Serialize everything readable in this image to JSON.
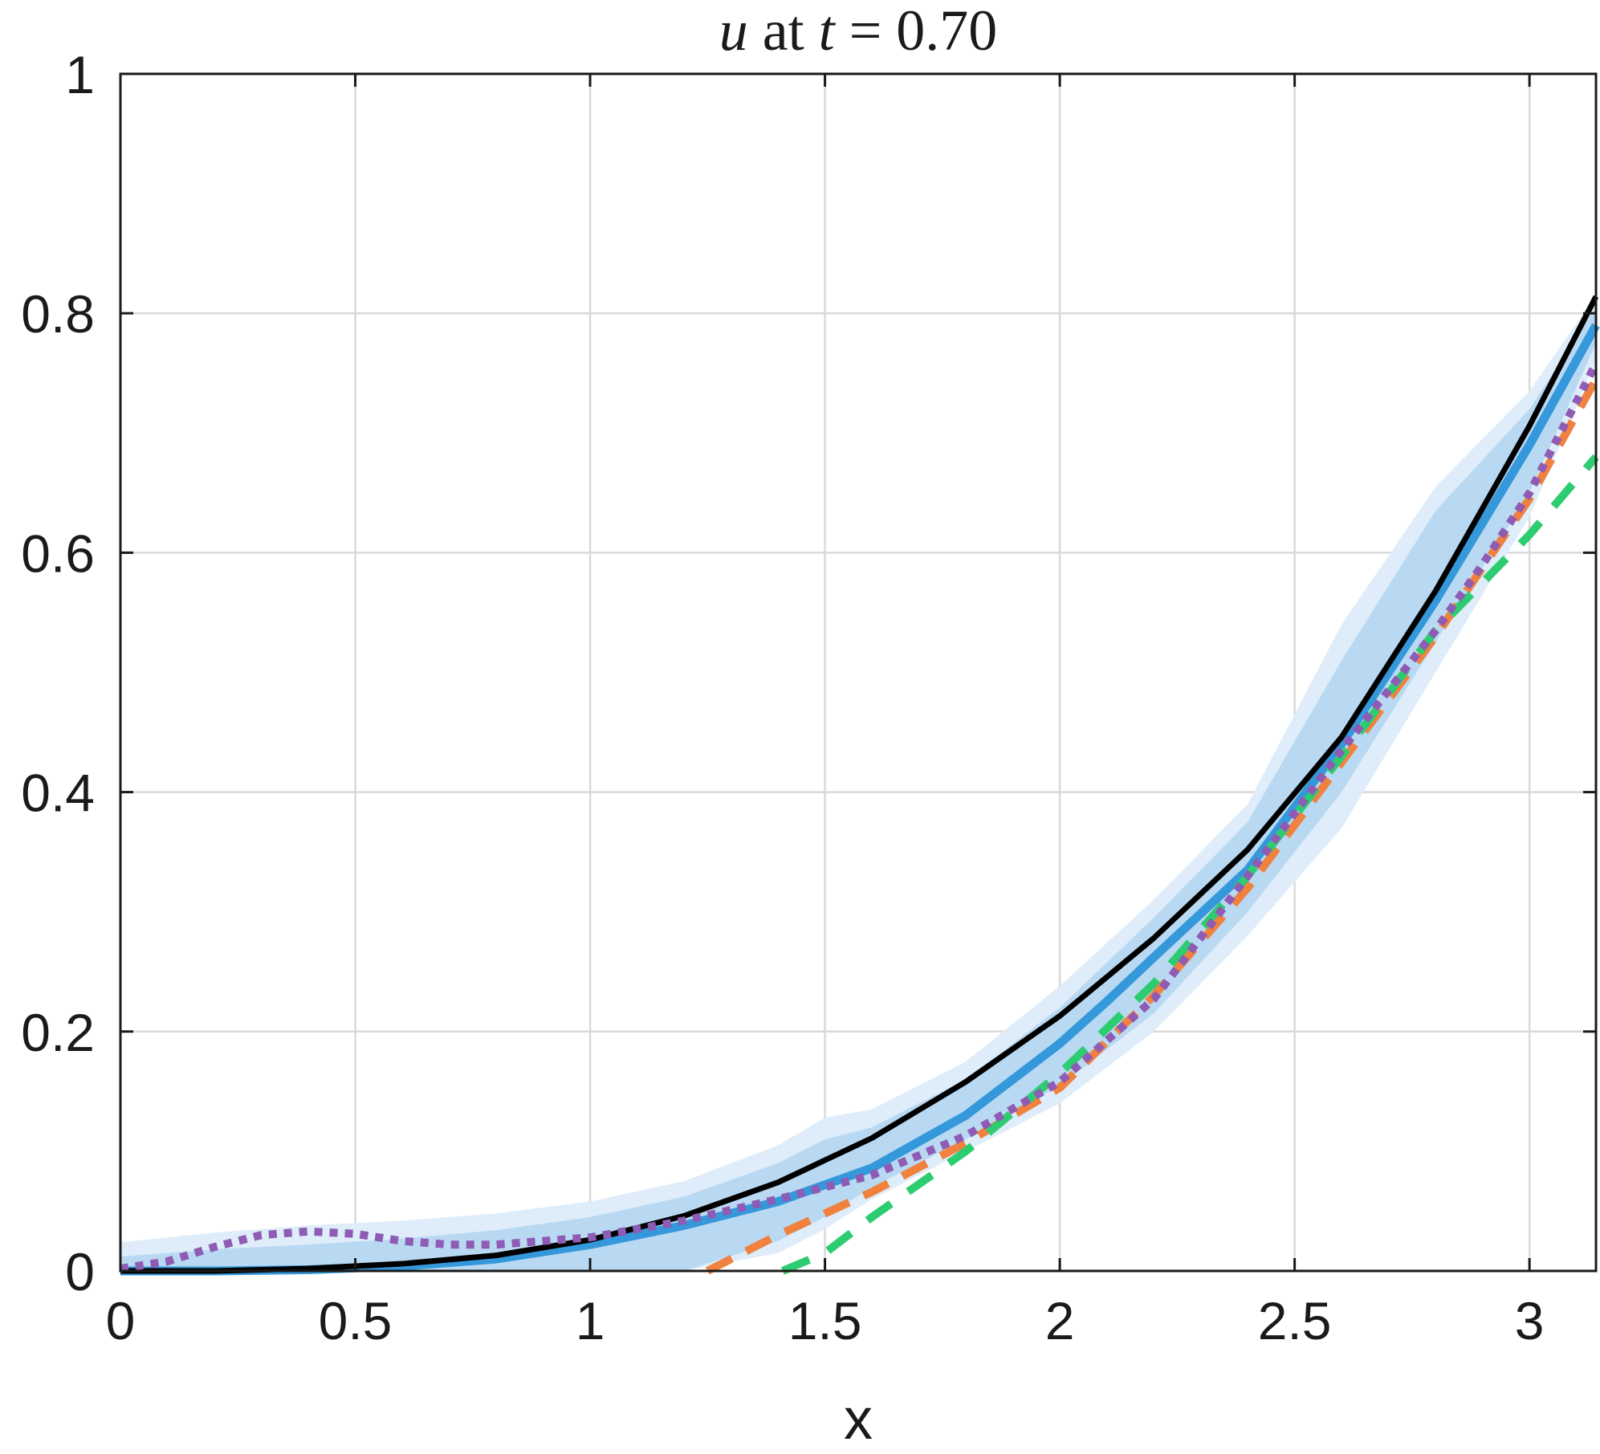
{
  "chart_data": {
    "type": "line",
    "title": "u at t = 0.70",
    "title_parts": {
      "var": "u",
      "mid": " at ",
      "tvar": "t",
      "tail": " = 0.70"
    },
    "xlabel": "x",
    "ylabel": "",
    "xlim": [
      0,
      3.1416
    ],
    "ylim": [
      0,
      1
    ],
    "xticks": [
      0,
      0.5,
      1,
      1.5,
      2,
      2.5,
      3
    ],
    "xtick_labels": [
      "0",
      "0.5",
      "1",
      "1.5",
      "2",
      "2.5",
      "3"
    ],
    "yticks": [
      0,
      0.2,
      0.4,
      0.6,
      0.8,
      1
    ],
    "ytick_labels": [
      "0",
      "0.2",
      "0.4",
      "0.6",
      "0.8",
      "1"
    ],
    "grid": true,
    "colors": {
      "black": "#000000",
      "blue": "#3498db",
      "band_outer": "#deedf9",
      "band_inner": "#b9d9f2",
      "orange": "#f0813e",
      "green": "#2ecc71",
      "purple": "#8e5bb5"
    },
    "bands": [
      {
        "style": "outer",
        "x": [
          0,
          0.2,
          0.4,
          0.6,
          0.8,
          1.0,
          1.2,
          1.4,
          1.5,
          1.6,
          1.8,
          2.0,
          2.2,
          2.4,
          2.6,
          2.8,
          3.0,
          3.1416
        ],
        "upper": [
          0.024,
          0.032,
          0.038,
          0.042,
          0.048,
          0.058,
          0.075,
          0.105,
          0.128,
          0.135,
          0.175,
          0.238,
          0.31,
          0.39,
          0.54,
          0.655,
          0.735,
          0.815
        ],
        "lower": [
          0.0,
          0.0,
          0.0,
          0.0,
          0.0,
          0.0,
          0.0,
          0.015,
          0.035,
          0.06,
          0.1,
          0.14,
          0.2,
          0.28,
          0.37,
          0.5,
          0.63,
          0.76
        ]
      },
      {
        "style": "inner",
        "x": [
          0,
          0.2,
          0.4,
          0.6,
          0.8,
          1.0,
          1.2,
          1.4,
          1.5,
          1.6,
          1.8,
          2.0,
          2.2,
          2.4,
          2.6,
          2.8,
          3.0,
          3.1416
        ],
        "upper": [
          0.012,
          0.018,
          0.022,
          0.027,
          0.034,
          0.045,
          0.062,
          0.09,
          0.11,
          0.12,
          0.16,
          0.22,
          0.295,
          0.375,
          0.51,
          0.635,
          0.72,
          0.805
        ],
        "lower": [
          0.0,
          0.0,
          0.0,
          0.0,
          0.0,
          0.0,
          0.0,
          0.025,
          0.045,
          0.07,
          0.11,
          0.155,
          0.215,
          0.3,
          0.4,
          0.525,
          0.65,
          0.775
        ]
      }
    ],
    "series": [
      {
        "style": "blue-solid",
        "x": [
          0,
          0.2,
          0.4,
          0.6,
          0.8,
          1.0,
          1.2,
          1.4,
          1.6,
          1.8,
          2.0,
          2.1,
          2.2,
          2.4,
          2.6,
          2.8,
          3.0,
          3.1416
        ],
        "y": [
          0.0,
          0.0,
          0.001,
          0.004,
          0.01,
          0.022,
          0.038,
          0.058,
          0.086,
          0.13,
          0.19,
          0.225,
          0.262,
          0.335,
          0.44,
          0.56,
          0.69,
          0.79
        ]
      },
      {
        "style": "black-solid",
        "x": [
          0,
          0.2,
          0.4,
          0.6,
          0.8,
          1.0,
          1.2,
          1.4,
          1.6,
          1.8,
          2.0,
          2.2,
          2.4,
          2.6,
          2.8,
          3.0,
          3.1416
        ],
        "y": [
          0.0,
          0.0,
          0.002,
          0.006,
          0.013,
          0.026,
          0.046,
          0.074,
          0.111,
          0.158,
          0.213,
          0.278,
          0.352,
          0.446,
          0.568,
          0.706,
          0.814
        ]
      },
      {
        "style": "orange-dashed",
        "x": [
          1.25,
          1.4,
          1.6,
          1.8,
          2.0,
          2.2,
          2.4,
          2.6,
          2.8,
          3.0,
          3.1416
        ],
        "y": [
          0.0,
          0.03,
          0.066,
          0.107,
          0.153,
          0.23,
          0.32,
          0.425,
          0.53,
          0.645,
          0.745
        ]
      },
      {
        "style": "green-dashed",
        "x": [
          1.41,
          1.5,
          1.6,
          1.8,
          2.0,
          2.2,
          2.4,
          2.6,
          2.8,
          3.0,
          3.1416
        ],
        "y": [
          0.0,
          0.015,
          0.045,
          0.1,
          0.165,
          0.24,
          0.33,
          0.43,
          0.535,
          0.615,
          0.68
        ]
      },
      {
        "style": "purple-dotted",
        "x": [
          0,
          0.1,
          0.2,
          0.3,
          0.4,
          0.5,
          0.6,
          0.7,
          0.8,
          1.0,
          1.2,
          1.4,
          1.6,
          1.8,
          2.0,
          2.2,
          2.4,
          2.6,
          2.8,
          2.9,
          3.0,
          3.1416
        ],
        "y": [
          0.002,
          0.008,
          0.02,
          0.03,
          0.033,
          0.031,
          0.025,
          0.022,
          0.022,
          0.028,
          0.042,
          0.06,
          0.08,
          0.113,
          0.158,
          0.227,
          0.33,
          0.435,
          0.535,
          0.59,
          0.65,
          0.758
        ]
      }
    ]
  }
}
